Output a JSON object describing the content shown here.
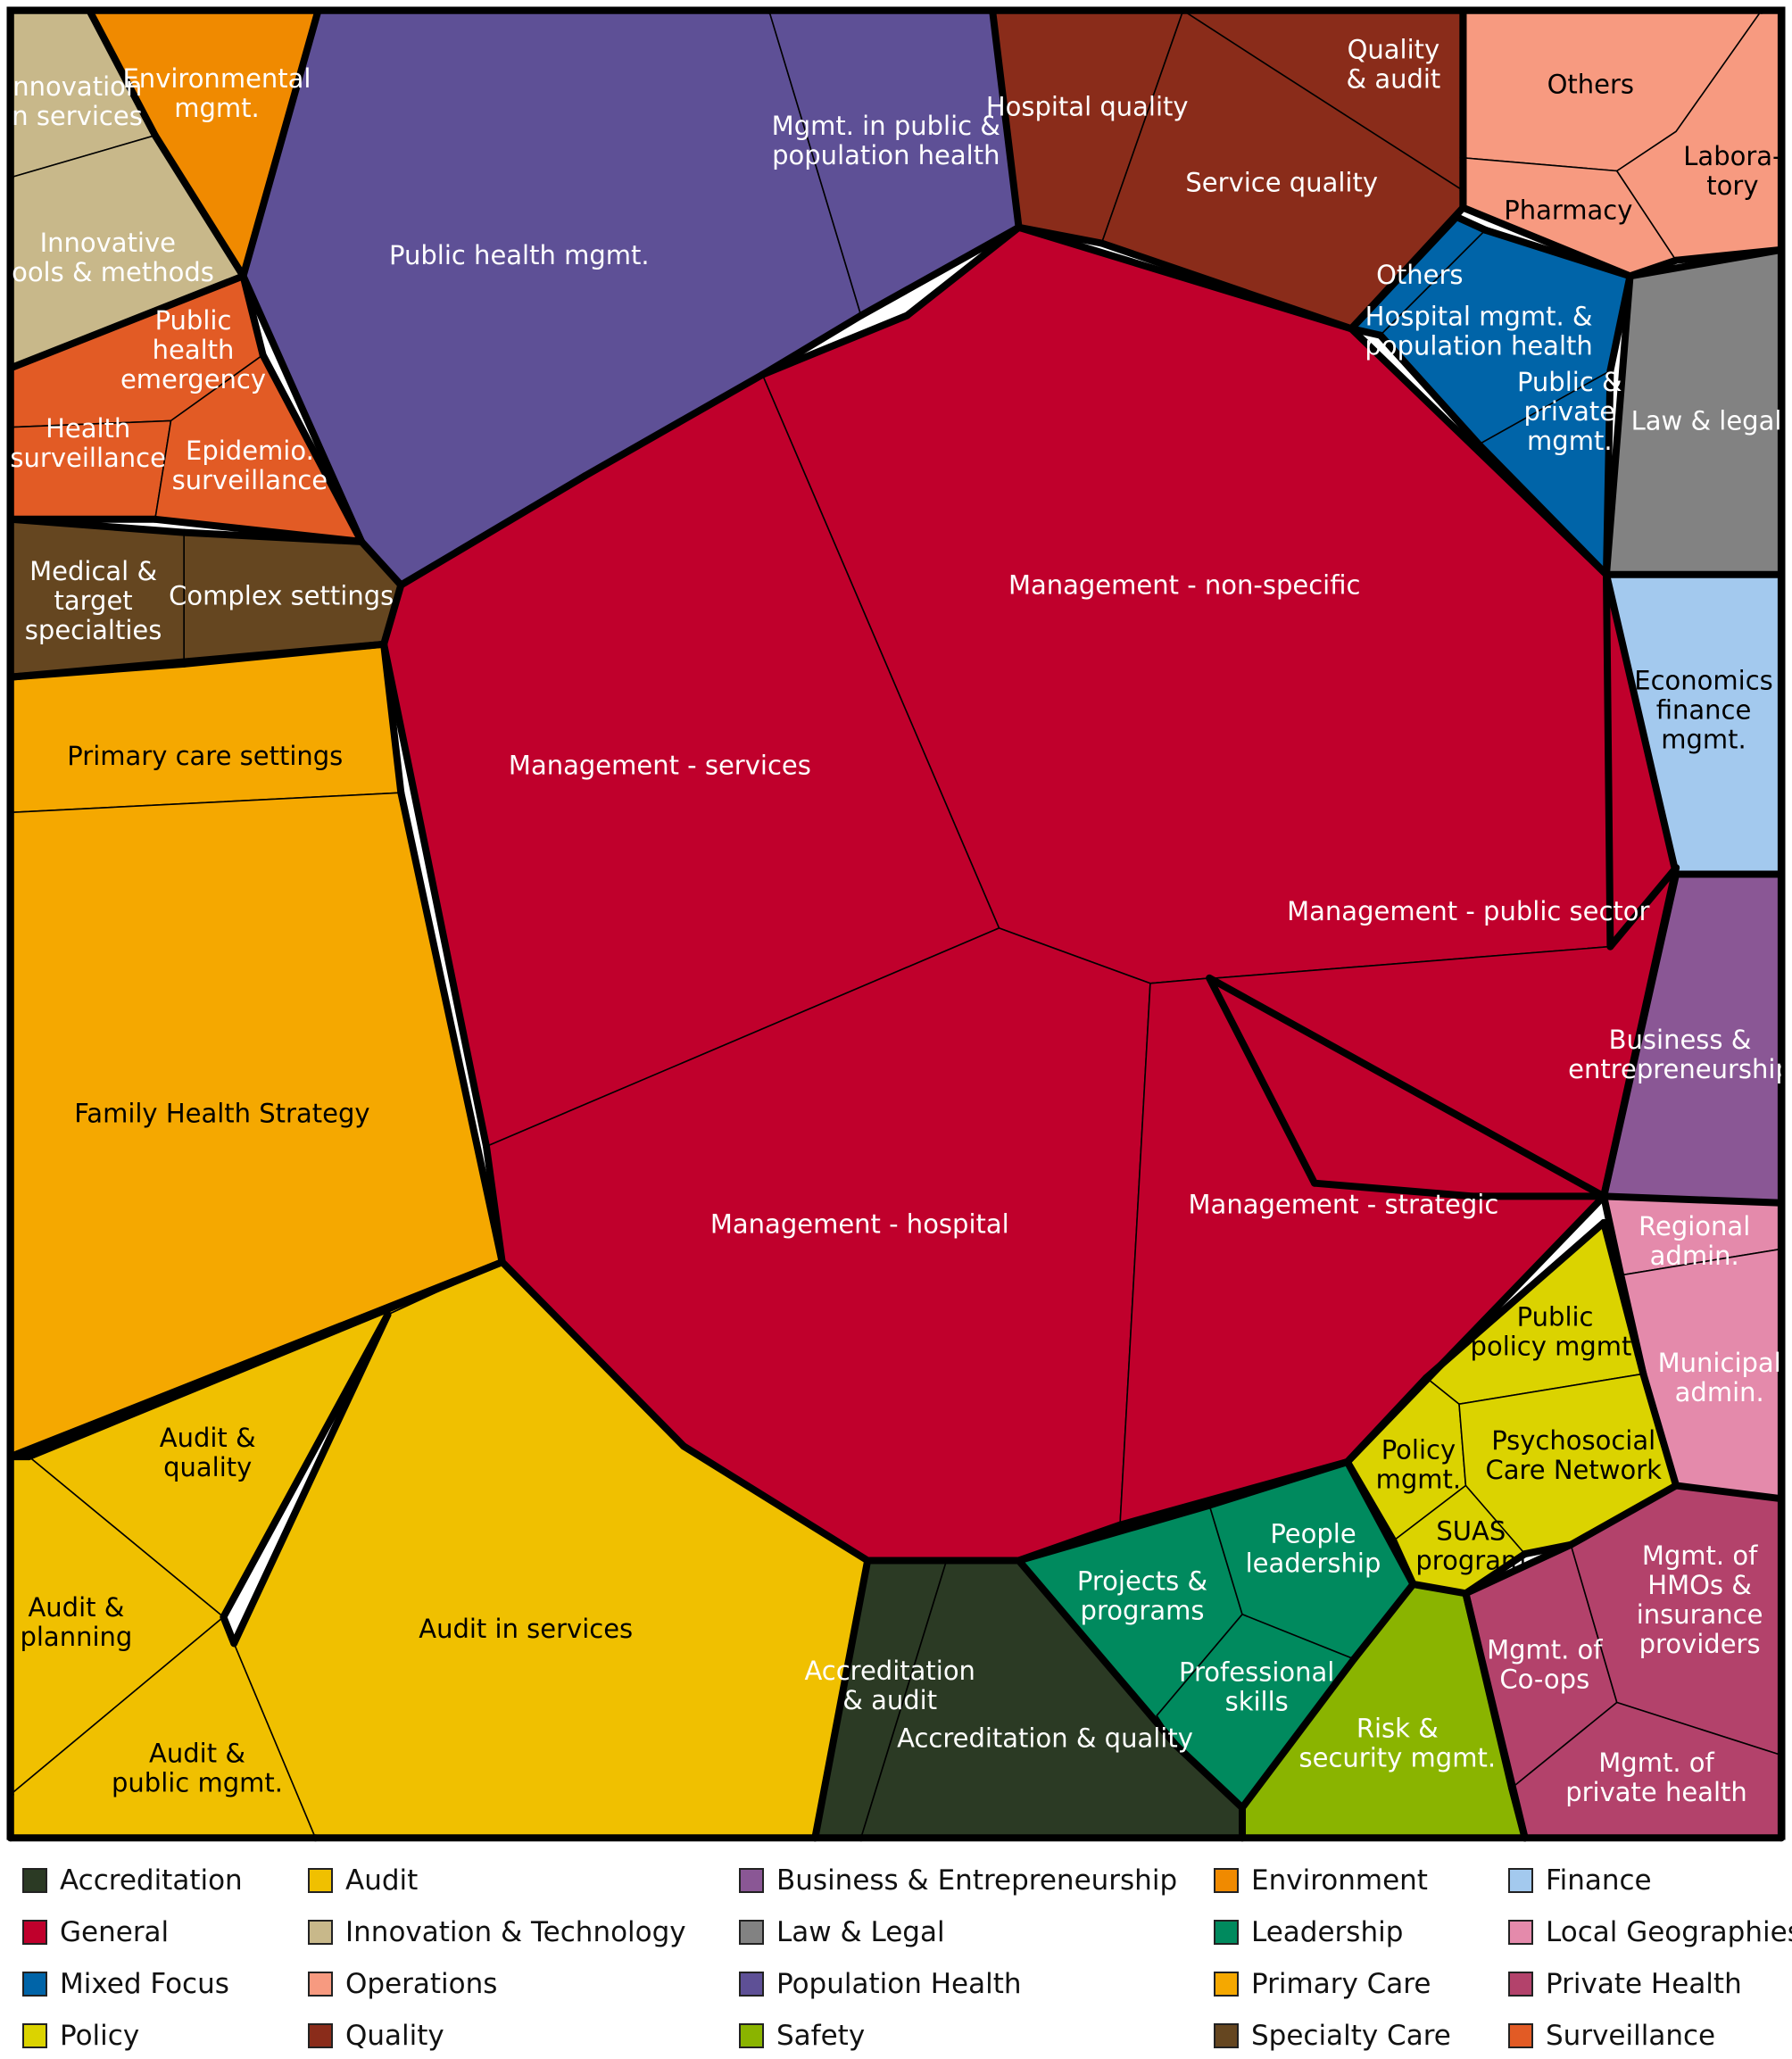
{
  "chart_data": {
    "type": "voronoi-treemap",
    "categories": [
      {
        "name": "Accreditation",
        "color": "#2b3a24",
        "cells": [
          "Accreditation & audit",
          "Accreditation & quality"
        ]
      },
      {
        "name": "Audit",
        "color": "#f0c000",
        "cells": [
          "Audit & quality",
          "Audit & planning",
          "Audit & public mgmt.",
          "Audit in services"
        ]
      },
      {
        "name": "Business & Entrepreneurship",
        "color": "#8a5795",
        "cells": [
          "Business & entrepreneurship"
        ]
      },
      {
        "name": "Environment",
        "color": "#f08a00",
        "cells": [
          "Environmental mgmt."
        ]
      },
      {
        "name": "Finance",
        "color": "#a3c9ee",
        "cells": [
          "Economics finance mgmt."
        ]
      },
      {
        "name": "General",
        "color": "#c0002c",
        "cells": [
          "Management - non-specific",
          "Management - services",
          "Management - public sector",
          "Management - hospital",
          "Management - strategic"
        ]
      },
      {
        "name": "Innovation & Technology",
        "color": "#c8b88a",
        "cells": [
          "Innovation in services",
          "Innovative tools & methods"
        ]
      },
      {
        "name": "Law & Legal",
        "color": "#828282",
        "cells": [
          "Law & legal"
        ]
      },
      {
        "name": "Leadership",
        "color": "#008a5e",
        "cells": [
          "People leadership",
          "Projects & programs",
          "Professional skills"
        ]
      },
      {
        "name": "Local Geographies",
        "color": "#e48aab",
        "cells": [
          "Regional admin.",
          "Municipal admin."
        ]
      },
      {
        "name": "Mixed Focus",
        "color": "#0064a8",
        "cells": [
          "Others",
          "Hospital mgmt. & population health",
          "Public & private mgmt."
        ]
      },
      {
        "name": "Operations",
        "color": "#f79a80",
        "cells": [
          "Others",
          "Pharmacy",
          "Laboratory"
        ]
      },
      {
        "name": "Population Health",
        "color": "#5e5096",
        "cells": [
          "Public health mgmt.",
          "Mgmt. in public & population health"
        ]
      },
      {
        "name": "Primary Care",
        "color": "#f5a800",
        "cells": [
          "Primary care settings",
          "Family Health Strategy"
        ]
      },
      {
        "name": "Private Health",
        "color": "#b3426b",
        "cells": [
          "Mgmt. of HMOs & insurance providers",
          "Mgmt. of Co-ops",
          "Mgmt. of private health"
        ]
      },
      {
        "name": "Policy",
        "color": "#dbd300",
        "cells": [
          "Public policy mgmt.",
          "Policy mgmt.",
          "Psychosocial Care Network",
          "SUAS program"
        ]
      },
      {
        "name": "Quality",
        "color": "#8a2c1a",
        "cells": [
          "Hospital quality",
          "Quality & audit",
          "Service quality"
        ]
      },
      {
        "name": "Safety",
        "color": "#8ab400",
        "cells": [
          "Risk & security mgmt."
        ]
      },
      {
        "name": "Specialty Care",
        "color": "#654620",
        "cells": [
          "Medical & target specialties",
          "Complex settings"
        ]
      },
      {
        "name": "Surveillance",
        "color": "#e25b25",
        "cells": [
          "Public health emergency",
          "Health surveillance",
          "Epidemio. surveillance"
        ]
      }
    ],
    "legend": {
      "placement": "bottom",
      "entries": [
        "Accreditation",
        "Audit",
        "Business & Entrepreneurship",
        "Environment",
        "Finance",
        "General",
        "Innovation & Technology",
        "Law & Legal",
        "Leadership",
        "Local Geographies",
        "Mixed Focus",
        "Operations",
        "Population Health",
        "Primary Care",
        "Private Health",
        "Policy",
        "Quality",
        "Safety",
        "Specialty Care",
        "Surveillance"
      ]
    },
    "cell_labels": {
      "general_non_specific": [
        "Management - non-specific"
      ],
      "general_services": [
        "Management - services"
      ],
      "general_public": [
        "Management  - public sector"
      ],
      "general_hospital": [
        "Management - hospital"
      ],
      "general_strategic": [
        "Management - strategic"
      ],
      "pop_public_health": [
        "Public health mgmt."
      ],
      "pop_population": [
        "Mgmt. in public &",
        "population health"
      ],
      "innov_services": [
        "Innovation",
        "in services"
      ],
      "innov_tools": [
        "Innovative",
        "tools & methods"
      ],
      "env_mgmt": [
        "Environmental",
        "mgmt."
      ],
      "surv_emergency": [
        "Public",
        "health",
        "emergency"
      ],
      "surv_health": [
        "Health",
        "surveillance"
      ],
      "surv_epidemio": [
        "Epidemio.",
        "surveillance"
      ],
      "spec_medical": [
        "Medical &",
        "target",
        "specialties"
      ],
      "spec_complex": [
        "Complex settings"
      ],
      "prim_settings": [
        "Primary care settings"
      ],
      "prim_fhs": [
        "Family Health Strategy"
      ],
      "audit_quality": [
        "Audit &",
        "quality"
      ],
      "audit_planning": [
        "Audit &",
        "planning"
      ],
      "audit_public": [
        "Audit &",
        "public mgmt."
      ],
      "audit_services": [
        "Audit in services"
      ],
      "accr_audit": [
        "Accreditation",
        "& audit"
      ],
      "accr_quality": [
        "Accreditation & quality"
      ],
      "lead_projects": [
        "Projects &",
        "programs"
      ],
      "lead_people": [
        "People",
        "leadership"
      ],
      "lead_skills": [
        "Professional",
        "skills"
      ],
      "safety_risk": [
        "Risk &",
        "security mgmt."
      ],
      "priv_coops": [
        "Mgmt. of",
        "Co-ops"
      ],
      "priv_hmo": [
        "Mgmt. of",
        "HMOs &",
        "insurance",
        "providers"
      ],
      "priv_private": [
        "Mgmt. of",
        "private health"
      ],
      "policy_public": [
        "Public",
        "policy mgmt."
      ],
      "policy_mgmt": [
        "Policy",
        "mgmt."
      ],
      "policy_psycho": [
        "Psychosocial",
        "Care Network"
      ],
      "policy_suas": [
        "SUAS",
        "program"
      ],
      "local_regional": [
        "Regional",
        "admin."
      ],
      "local_municipal": [
        "Municipal",
        "admin."
      ],
      "biz": [
        "Business &",
        "entrepreneurship"
      ],
      "finance": [
        "Economics",
        "finance",
        "mgmt."
      ],
      "law": [
        "Law & legal"
      ],
      "mixed_others": [
        "Others"
      ],
      "mixed_hospital": [
        "Hospital mgmt. &",
        "population health"
      ],
      "mixed_public": [
        "Public &",
        "private",
        "mgmt."
      ],
      "qual_hospital": [
        "Hospital quality"
      ],
      "qual_audit": [
        "Quality",
        "& audit"
      ],
      "qual_service": [
        "Service quality"
      ],
      "ops_others": [
        "Others"
      ],
      "ops_pharmacy": [
        "Pharmacy"
      ],
      "ops_lab": [
        "Labora-",
        "tory"
      ]
    }
  }
}
